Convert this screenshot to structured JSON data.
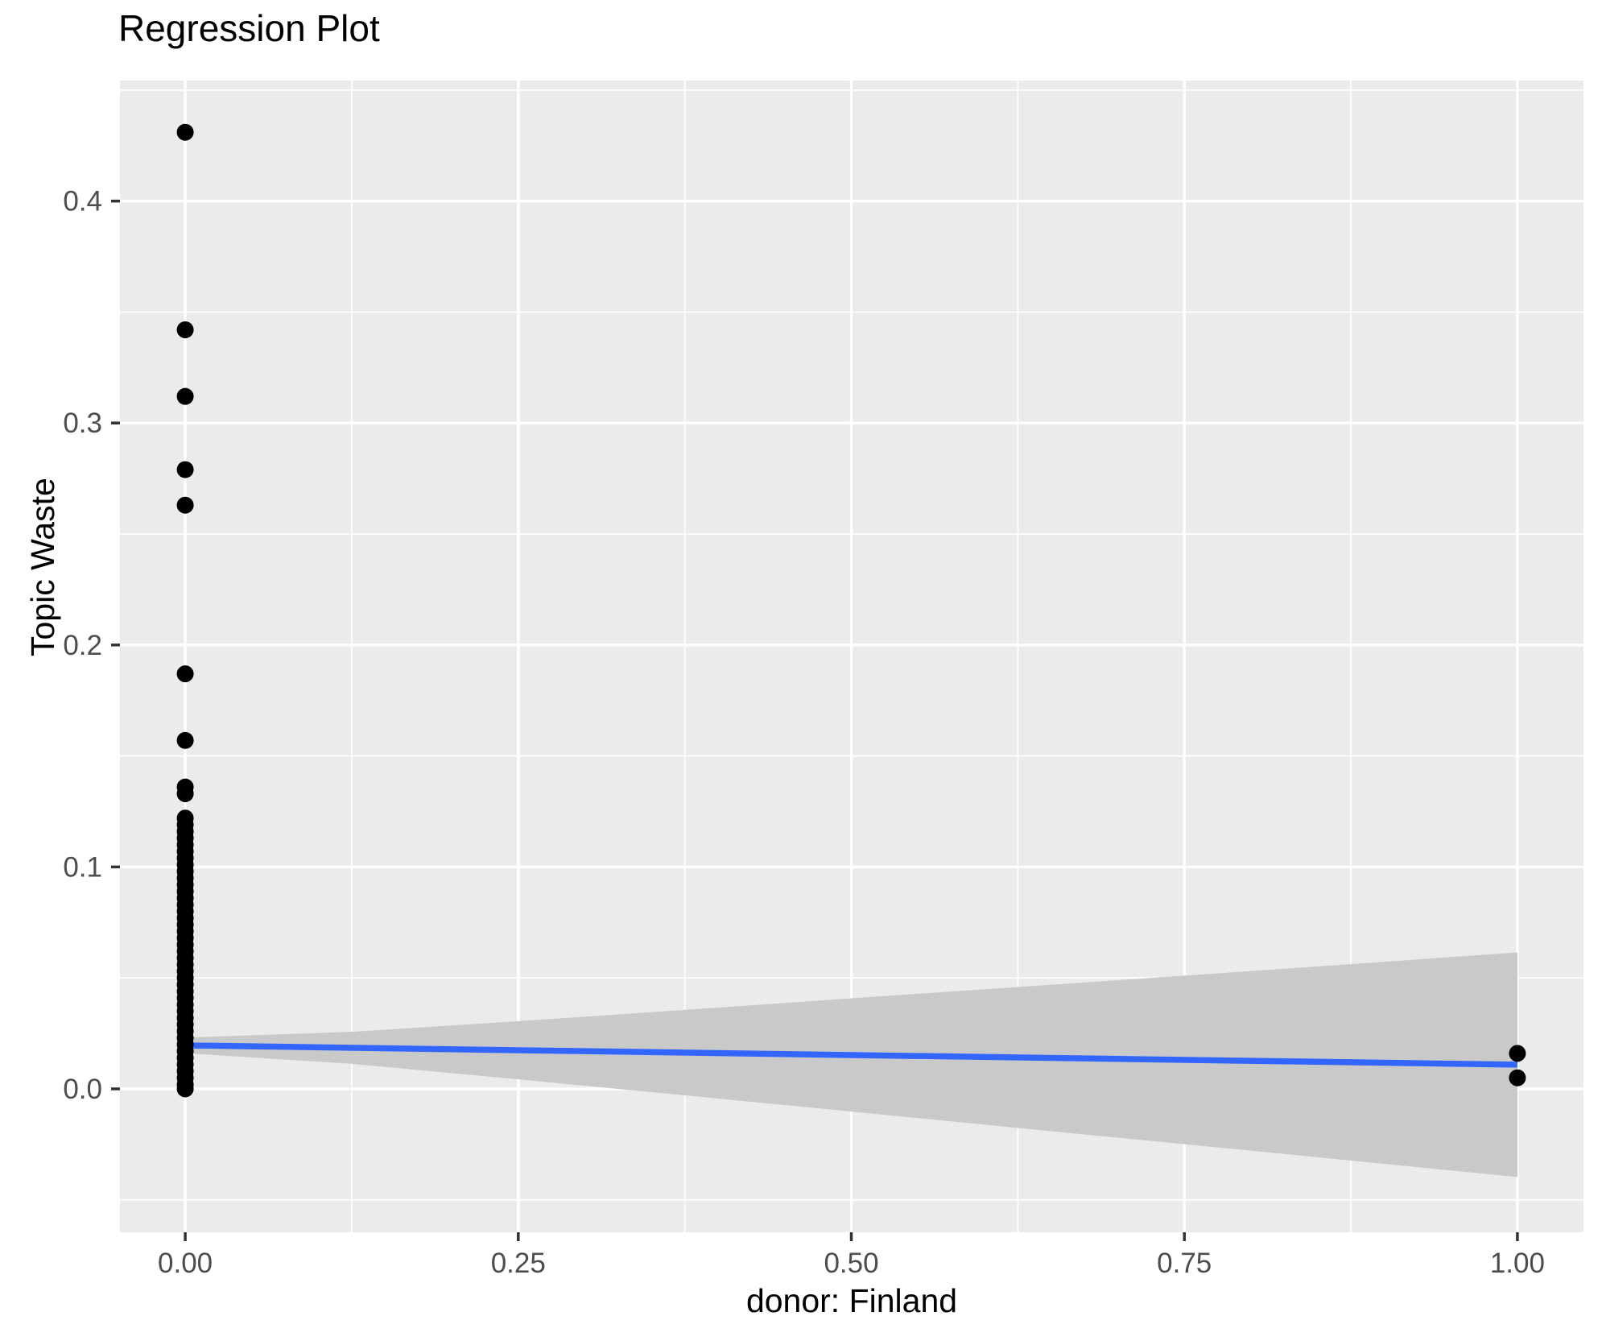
{
  "title": "Regression Plot",
  "colors": {
    "page_bg": "#FFFFFF",
    "panel_bg": "#EBEBEB",
    "grid": "#FFFFFF",
    "point": "#000000",
    "smooth_line": "#3366FF",
    "ci_band": "#C9C9C9",
    "tick_label": "#4D4D4D",
    "tick_mark": "#333333",
    "axis_title": "#000000"
  },
  "chart_data": {
    "type": "scatter",
    "title": "Regression Plot",
    "xlabel": "donor: Finland",
    "ylabel": "Topic Waste",
    "xlim": [
      -0.049,
      1.0496
    ],
    "ylim": [
      -0.0646,
      0.4543
    ],
    "grid": true,
    "legend": false,
    "x_ticks": [
      0,
      0.25,
      0.5,
      0.75,
      1.0
    ],
    "x_tick_labels": [
      "0.00",
      "0.25",
      "0.50",
      "0.75",
      "1.00"
    ],
    "x_minor_ticks": [
      0.125,
      0.375,
      0.625,
      0.875
    ],
    "y_ticks": [
      0.0,
      0.1,
      0.2,
      0.3,
      0.4
    ],
    "y_tick_labels": [
      "0.0",
      "0.1",
      "0.2",
      "0.3",
      "0.4"
    ],
    "y_minor_ticks": [
      -0.05,
      0.05,
      0.15,
      0.25,
      0.35,
      0.45
    ],
    "points": [
      [
        0,
        0.431
      ],
      [
        0,
        0.342
      ],
      [
        0,
        0.312
      ],
      [
        0,
        0.279
      ],
      [
        0,
        0.263
      ],
      [
        0,
        0.187
      ],
      [
        0,
        0.157
      ],
      [
        0,
        0.136
      ],
      [
        0,
        0.133
      ],
      [
        0,
        0.122
      ],
      [
        0,
        0.119
      ],
      [
        0,
        0.116
      ],
      [
        0,
        0.113
      ],
      [
        0,
        0.11
      ],
      [
        0,
        0.107
      ],
      [
        0,
        0.104
      ],
      [
        0,
        0.101
      ],
      [
        0,
        0.098
      ],
      [
        0,
        0.095
      ],
      [
        0,
        0.092
      ],
      [
        0,
        0.089
      ],
      [
        0,
        0.086
      ],
      [
        0,
        0.083
      ],
      [
        0,
        0.08
      ],
      [
        0,
        0.077
      ],
      [
        0,
        0.074
      ],
      [
        0,
        0.071
      ],
      [
        0,
        0.068
      ],
      [
        0,
        0.065
      ],
      [
        0,
        0.062
      ],
      [
        0,
        0.059
      ],
      [
        0,
        0.056
      ],
      [
        0,
        0.053
      ],
      [
        0,
        0.05
      ],
      [
        0,
        0.047
      ],
      [
        0,
        0.044
      ],
      [
        0,
        0.041
      ],
      [
        0,
        0.038
      ],
      [
        0,
        0.035
      ],
      [
        0,
        0.032
      ],
      [
        0,
        0.029
      ],
      [
        0,
        0.026
      ],
      [
        0,
        0.023
      ],
      [
        0,
        0.02
      ],
      [
        0,
        0.017
      ],
      [
        0,
        0.014
      ],
      [
        0,
        0.011
      ],
      [
        0,
        0.008
      ],
      [
        0,
        0.005
      ],
      [
        0,
        0.002
      ],
      [
        0,
        0.0
      ],
      [
        1,
        0.016
      ],
      [
        1,
        0.005
      ]
    ],
    "regression_line": {
      "x": [
        0,
        1
      ],
      "y": [
        0.0196,
        0.0109
      ]
    },
    "confidence_band": {
      "x": [
        0,
        0.125,
        0.25,
        0.375,
        0.5,
        0.625,
        0.75,
        0.875,
        1.0
      ],
      "upper": [
        0.0231,
        0.0257,
        0.0305,
        0.0356,
        0.0408,
        0.0459,
        0.051,
        0.0562,
        0.0615
      ],
      "lower": [
        0.0161,
        0.0113,
        0.0043,
        -0.0029,
        -0.0102,
        -0.0176,
        -0.0249,
        -0.0323,
        -0.0397
      ]
    }
  }
}
